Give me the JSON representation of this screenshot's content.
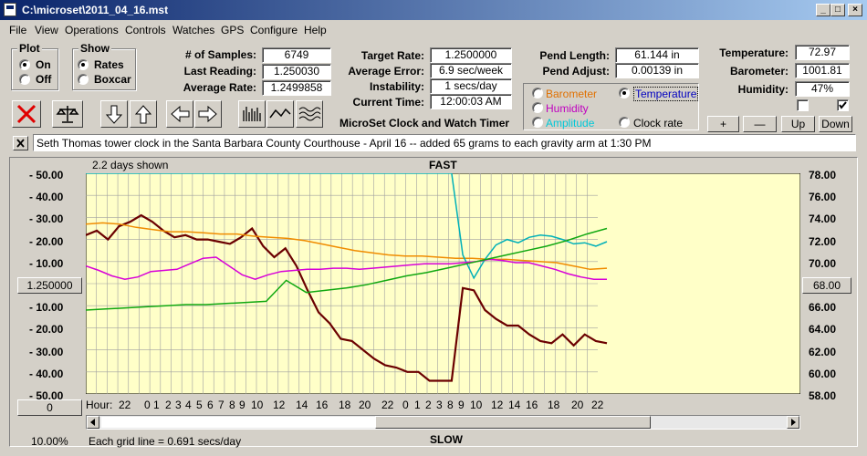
{
  "window": {
    "title": "C:\\microset\\2011_04_16.mst"
  },
  "menu": [
    "File",
    "View",
    "Operations",
    "Controls",
    "Watches",
    "GPS",
    "Configure",
    "Help"
  ],
  "plot_group": {
    "title": "Plot",
    "options": [
      "On",
      "Off"
    ],
    "selected": "On"
  },
  "show_group": {
    "title": "Show",
    "options": [
      "Rates",
      "Boxcar"
    ],
    "selected": "Rates"
  },
  "stats": {
    "samples_label": "# of Samples:",
    "samples": "6749",
    "last_label": "Last Reading:",
    "last": "1.250030",
    "avg_label": "Average Rate:",
    "avg": "1.2499858"
  },
  "rates": {
    "target_label": "Target Rate:",
    "target": "1.2500000",
    "error_label": "Average Error:",
    "error": "6.9 sec/week",
    "instab_label": "Instability:",
    "instab": "1 secs/day",
    "time_label": "Current Time:",
    "time": "12:00:03 AM"
  },
  "pend": {
    "length_label": "Pend Length:",
    "length": "61.144 in",
    "adjust_label": "Pend Adjust:",
    "adjust": "0.00139 in"
  },
  "env": {
    "temp_label": "Temperature:",
    "temp": "72.97",
    "baro_label": "Barometer:",
    "baro": "1001.81",
    "hum_label": "Humidity:",
    "hum": "47%"
  },
  "app_caption": "MicroSet Clock and Watch Timer",
  "sensor_opts": {
    "barometer": "Barometer",
    "temperature": "Temperature",
    "humidity": "Humidity",
    "amplitude": "Amplitude",
    "clockrate": "Clock rate",
    "selected": "Temperature",
    "colors": {
      "barometer": "#e07000",
      "temperature": "#0000c0",
      "humidity": "#c000c0",
      "amplitude": "#00c8d8",
      "clockrate": "#000000"
    }
  },
  "scale_buttons": {
    "plus": "+",
    "minus": "—",
    "up": "Up",
    "down": "Down"
  },
  "note": "Seth Thomas tower clock in the Santa Barbara County Courthouse - April 16 -- added 65 grams to each gravity arm at 1:30 PM",
  "chart": {
    "days_shown": "2.2 days shown",
    "top_label": "FAST",
    "bottom_label": "SLOW",
    "left_ticks": [
      "50.00",
      "40.00",
      "30.00",
      "20.00",
      "10.00",
      "",
      "10.00",
      "20.00",
      "30.00",
      "40.00",
      "50.00"
    ],
    "center_rate": "1.250000",
    "right_ticks": [
      "78.00",
      "76.00",
      "74.00",
      "72.00",
      "70.00",
      "",
      "66.00",
      "64.00",
      "62.00",
      "60.00",
      "58.00"
    ],
    "right_center": "68.00",
    "left_bottom_btn": "0",
    "hour_label": "Hour:",
    "hours": [
      "22",
      "0",
      "1",
      "2",
      "3",
      "4",
      "5",
      "6",
      "7",
      "8",
      "9",
      "10",
      "12",
      "14",
      "16",
      "18",
      "20",
      "22",
      "0",
      "1",
      "2",
      "3",
      "8",
      "9",
      "10",
      "12",
      "14",
      "16",
      "18",
      "20",
      "22"
    ],
    "grid_note": "Each grid line = 0.691 secs/day",
    "zoom": "10.00%"
  },
  "colors": {
    "plot_bg": "#ffffc8",
    "grid": "#a0a0a0",
    "rate": "#6b0000",
    "baro": "#f08c00",
    "temp": "#00b0b8",
    "hum": "#d800d8",
    "amp": "#10a810"
  },
  "chart_data": {
    "type": "line",
    "title": "",
    "x_label": "Hour:",
    "y_left_range": [
      -50,
      50
    ],
    "y_right_range": [
      58,
      78
    ],
    "series": [
      {
        "name": "Clock rate",
        "axis": "left",
        "values": [
          22,
          24,
          20,
          26,
          28,
          31,
          28,
          24,
          21,
          22,
          20,
          20,
          19,
          18,
          21,
          25,
          17,
          12,
          16,
          8,
          -3,
          -13,
          -18,
          -25,
          -26,
          -30,
          -34,
          -37,
          -38,
          -40,
          -40,
          -44,
          -44,
          -44,
          -2,
          -3,
          -12,
          -16,
          -19,
          -19,
          -23,
          -26,
          -27,
          -23,
          -28,
          -23,
          -26,
          -27
        ]
      },
      {
        "name": "Barometer",
        "axis": "right",
        "values": [
          73.4,
          73.5,
          73.4,
          73.1,
          72.9,
          72.7,
          72.7,
          72.6,
          72.5,
          72.5,
          72.3,
          72.2,
          72.1,
          71.9,
          71.6,
          71.3,
          71.0,
          70.8,
          70.6,
          70.5,
          70.5,
          70.4,
          70.3,
          70.3,
          70.2,
          70.2,
          70.1,
          70.0,
          69.9,
          69.6,
          69.3,
          69.4
        ]
      },
      {
        "name": "Temperature",
        "axis": "right",
        "values": [
          78,
          78,
          78,
          78,
          78,
          78,
          78,
          78,
          78,
          78,
          78,
          78,
          78,
          78,
          78,
          78,
          78,
          78,
          78,
          78,
          78,
          78,
          78,
          78,
          78,
          78,
          78,
          78,
          78,
          78,
          78,
          78,
          78,
          78,
          70.6,
          68.5,
          70.2,
          71.5,
          72.0,
          71.7,
          72.2,
          72.4,
          72.3,
          72.0,
          71.6,
          71.7,
          71.4,
          71.8
        ]
      },
      {
        "name": "Humidity",
        "axis": "right",
        "values": [
          69.6,
          69.2,
          68.7,
          68.4,
          68.6,
          69.1,
          69.2,
          69.3,
          69.8,
          70.3,
          70.4,
          69.6,
          68.8,
          68.4,
          68.8,
          69.1,
          69.2,
          69.3,
          69.3,
          69.4,
          69.4,
          69.3,
          69.4,
          69.5,
          69.6,
          69.7,
          69.8,
          69.8,
          69.8,
          69.9,
          70.0,
          70.2,
          70.1,
          69.9,
          69.9,
          69.6,
          69.3,
          68.9,
          68.6,
          68.4,
          68.4
        ]
      },
      {
        "name": "Amplitude",
        "axis": "right",
        "values": [
          65.6,
          65.7,
          65.8,
          65.9,
          66.0,
          66.1,
          66.1,
          66.2,
          66.3,
          66.4,
          68.3,
          67.2,
          67.4,
          67.6,
          67.9,
          68.3,
          68.7,
          69.0,
          69.4,
          69.8,
          70.2,
          70.6,
          71.0,
          71.4,
          71.9,
          72.5,
          73.0
        ]
      }
    ]
  }
}
